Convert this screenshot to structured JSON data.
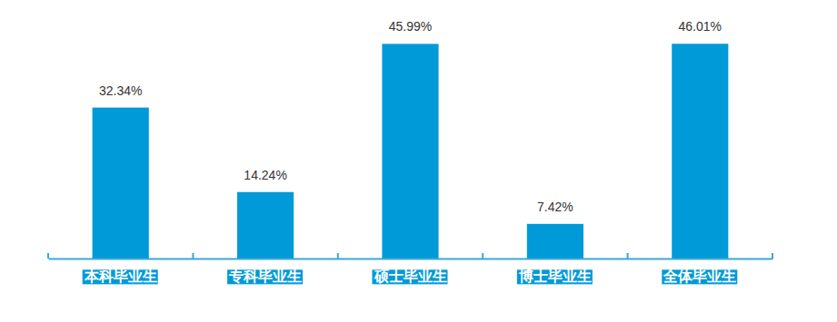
{
  "chart_data": {
    "type": "bar",
    "categories": [
      "本科毕业生",
      "专科毕业生",
      "硕士毕业生",
      "博士毕业生",
      "全体毕业生"
    ],
    "values": [
      32.34,
      14.24,
      45.99,
      7.42,
      46.01
    ],
    "value_labels": [
      "32.34%",
      "14.24%",
      "45.99%",
      "7.42%",
      "46.01%"
    ],
    "color": "#009ad8",
    "ylim": [
      0,
      55
    ],
    "data_labels": true,
    "tick_labels": "x",
    "grid": false
  }
}
